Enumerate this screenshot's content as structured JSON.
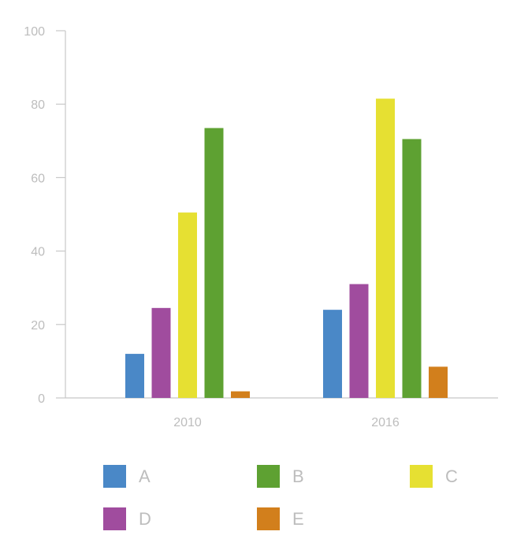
{
  "chart_data": {
    "type": "bar",
    "title": "",
    "xlabel": "",
    "ylabel": "",
    "categories": [
      "2010",
      "2016"
    ],
    "ylim": [
      0,
      100
    ],
    "yticks": [
      0,
      20,
      40,
      60,
      80,
      100
    ],
    "grid": false,
    "legend_position": "bottom",
    "series": [
      {
        "name": "A",
        "color": "#4a88c7",
        "values": [
          12,
          24
        ]
      },
      {
        "name": "D",
        "color": "#a04c9e",
        "values": [
          24.5,
          31
        ]
      },
      {
        "name": "C",
        "color": "#e6e032",
        "values": [
          50.5,
          81.5
        ]
      },
      {
        "name": "B",
        "color": "#5ea132",
        "values": [
          73.5,
          70.5
        ]
      },
      {
        "name": "E",
        "color": "#d27f1c",
        "values": [
          1.8,
          8.5
        ]
      }
    ],
    "legend_order": [
      "A",
      "B",
      "C",
      "D",
      "E"
    ]
  }
}
